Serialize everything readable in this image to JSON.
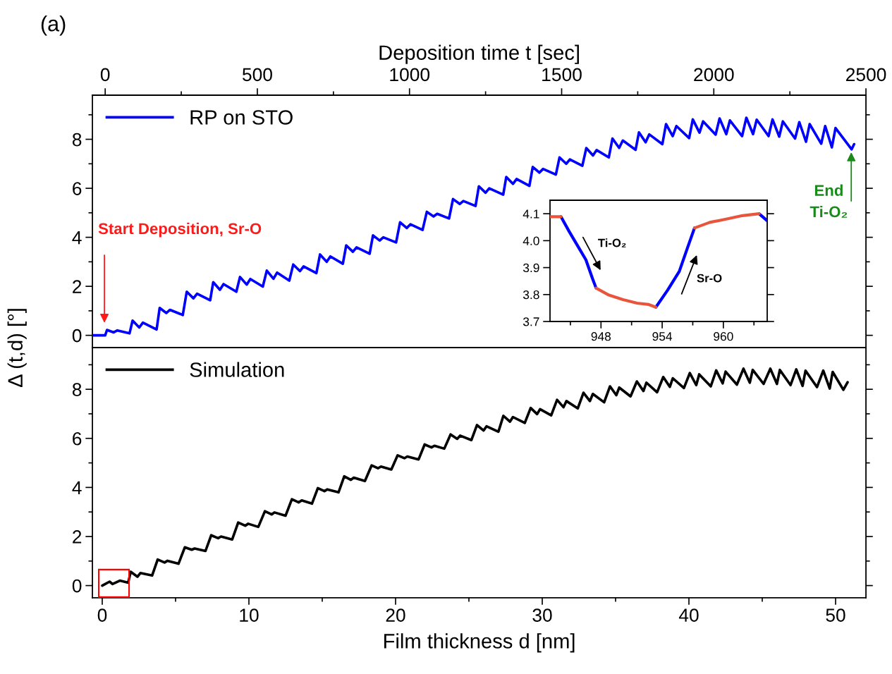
{
  "chart_data": [
    {
      "type": "line",
      "xlabel": "Deposition time t [sec]",
      "ylabel": "Δ (t,d) [°]",
      "xlim": [
        -42,
        2500
      ],
      "xticks": [
        0,
        {
          "value": 250,
          "label": null
        },
        500,
        {
          "value": 750,
          "label": null
        },
        1000,
        {
          "value": 1250,
          "label": null
        },
        1500,
        {
          "value": 1750,
          "label": null
        },
        2000,
        {
          "value": 2250,
          "label": null
        },
        2500
      ],
      "ylim": [
        -0.5,
        9.8
      ],
      "yticks": [
        0,
        {
          "value": 1,
          "label": null
        },
        2,
        {
          "value": 3,
          "label": null
        },
        4,
        {
          "value": 5,
          "label": null
        },
        6,
        {
          "value": 7,
          "label": null
        },
        8,
        {
          "value": 9,
          "label": null
        }
      ],
      "legend": "top left",
      "marker": "none",
      "line_style": "solid",
      "series": [
        {
          "name": "RP on STO",
          "color": "#0000ff",
          "x": [
            -40,
            0,
            6,
            28,
            40,
            80,
            90,
            112,
            124,
            169,
            179,
            201,
            213,
            255,
            268,
            290,
            302,
            345,
            355,
            377,
            389,
            431,
            443,
            465,
            477,
            518,
            531,
            553,
            565,
            605,
            618,
            640,
            652,
            694,
            706,
            728,
            740,
            781,
            792,
            814,
            826,
            869,
            880,
            902,
            914,
            956,
            969,
            991,
            1003,
            1043,
            1057,
            1079,
            1091,
            1130,
            1143,
            1165,
            1177,
            1217,
            1228,
            1250,
            1262,
            1308,
            1318,
            1340,
            1352,
            1394,
            1405,
            1427,
            1439,
            1481,
            1493,
            1515,
            1527,
            1568,
            1581,
            1603,
            1615,
            1655,
            1667,
            1689,
            1701,
            1743,
            1754,
            1776,
            1788,
            1831,
            1843,
            1865,
            1877,
            1919,
            1931,
            1953,
            1965,
            2006,
            2019,
            2041,
            2053,
            2093,
            2107,
            2129,
            2141,
            2180,
            2193,
            2215,
            2227,
            2267,
            2281,
            2303,
            2315,
            2353,
            2366,
            2388,
            2400,
            2453,
            2461
          ],
          "values": [
            0,
            0,
            0.22,
            0.12,
            0.2,
            0.08,
            0.6,
            0.32,
            0.52,
            0.24,
            1.12,
            0.91,
            1.04,
            0.83,
            1.78,
            1.51,
            1.7,
            1.43,
            2.17,
            1.86,
            2.09,
            1.78,
            2.38,
            2.07,
            2.3,
            1.99,
            2.64,
            2.31,
            2.56,
            2.23,
            2.89,
            2.62,
            2.81,
            2.54,
            3.3,
            3.0,
            3.22,
            2.92,
            3.67,
            3.41,
            3.59,
            3.33,
            4.08,
            3.87,
            4.0,
            3.79,
            4.61,
            4.38,
            4.53,
            4.3,
            5.04,
            4.85,
            4.96,
            4.77,
            5.56,
            5.36,
            5.48,
            5.28,
            6.08,
            5.82,
            6.0,
            5.74,
            6.46,
            6.18,
            6.38,
            6.1,
            6.87,
            6.64,
            6.79,
            6.56,
            7.26,
            7.0,
            7.18,
            6.92,
            7.64,
            7.34,
            7.56,
            7.26,
            8.03,
            7.65,
            7.95,
            7.57,
            8.28,
            7.88,
            8.2,
            7.8,
            8.62,
            8.13,
            8.54,
            8.05,
            8.81,
            8.27,
            8.73,
            8.19,
            8.85,
            8.21,
            8.77,
            8.13,
            8.88,
            8.21,
            8.8,
            8.13,
            8.81,
            8.11,
            8.73,
            8.03,
            8.7,
            7.9,
            8.62,
            7.82,
            8.54,
            7.67,
            8.46,
            7.59,
            7.8
          ]
        }
      ],
      "annotations": [
        "Start Deposition, Sr-O",
        "End\nTi-O₂",
        "(a)"
      ]
    },
    {
      "type": "line",
      "xlabel": "Film thickness d [nm]",
      "xlim": [
        -0.67,
        52.07
      ],
      "xticks": [
        0,
        {
          "value": 5,
          "label": null
        },
        10,
        {
          "value": 15,
          "label": null
        },
        20,
        {
          "value": 25,
          "label": null
        },
        30,
        {
          "value": 35,
          "label": null
        },
        40,
        {
          "value": 45,
          "label": null
        },
        50
      ],
      "ylim": [
        -0.5,
        9.7
      ],
      "yticks": [
        0,
        {
          "value": 1,
          "label": null
        },
        2,
        {
          "value": 3,
          "label": null
        },
        4,
        {
          "value": 5,
          "label": null
        },
        6,
        {
          "value": 7,
          "label": null
        },
        8,
        {
          "value": 9,
          "label": null
        }
      ],
      "legend": "top left",
      "marker": "none",
      "line_style": "solid",
      "series": [
        {
          "name": "Simulation",
          "color": "#000000",
          "x": [
            0,
            0.5,
            0.7,
            1.2,
            1.77,
            1.94,
            2.4,
            2.6,
            3.4,
            3.78,
            4.25,
            4.45,
            5.2,
            5.63,
            6.1,
            6.3,
            7.04,
            7.43,
            7.9,
            8.1,
            8.86,
            9.27,
            9.75,
            9.95,
            10.64,
            11.09,
            11.55,
            11.75,
            12.5,
            12.93,
            13.4,
            13.6,
            14.3,
            14.7,
            15.15,
            15.35,
            16.11,
            16.5,
            16.95,
            17.15,
            17.91,
            18.37,
            18.8,
            19.0,
            19.71,
            20.14,
            20.6,
            20.8,
            21.57,
            21.98,
            22.45,
            22.65,
            23.32,
            23.75,
            24.2,
            24.4,
            25.17,
            25.55,
            26.0,
            26.2,
            27.01,
            27.35,
            27.8,
            28.0,
            28.81,
            29.21,
            29.65,
            29.85,
            30.61,
            31.01,
            31.45,
            31.65,
            32.42,
            32.81,
            33.25,
            33.45,
            34.22,
            34.62,
            35.05,
            35.25,
            36.02,
            36.45,
            36.9,
            37.1,
            37.83,
            38.25,
            38.7,
            38.9,
            39.66,
            40.06,
            40.5,
            40.7,
            41.49,
            41.86,
            42.3,
            42.5,
            43.27,
            43.72,
            44.15,
            44.35,
            45.09,
            45.55,
            46.0,
            46.2,
            46.93,
            47.32,
            47.75,
            47.95,
            48.73,
            49.16,
            49.6,
            49.8,
            50.53,
            50.82
          ],
          "values": [
            0.0,
            0.16,
            0.06,
            0.2,
            0.12,
            0.56,
            0.36,
            0.51,
            0.41,
            1.06,
            0.94,
            1.01,
            0.89,
            1.56,
            1.46,
            1.51,
            1.41,
            2.05,
            1.93,
            2.0,
            1.88,
            2.57,
            2.44,
            2.52,
            2.39,
            3.03,
            2.9,
            2.98,
            2.85,
            3.52,
            3.39,
            3.47,
            3.34,
            3.97,
            3.85,
            3.92,
            3.8,
            4.45,
            4.31,
            4.4,
            4.26,
            4.9,
            4.78,
            4.85,
            4.73,
            5.31,
            5.19,
            5.26,
            5.14,
            5.75,
            5.63,
            5.7,
            5.58,
            6.16,
            5.98,
            6.11,
            5.93,
            6.54,
            6.32,
            6.49,
            6.27,
            6.92,
            6.68,
            6.87,
            6.63,
            7.24,
            6.99,
            7.19,
            6.94,
            7.57,
            7.27,
            7.52,
            7.22,
            7.86,
            7.52,
            7.81,
            7.47,
            8.12,
            7.76,
            8.07,
            7.71,
            8.32,
            7.93,
            8.27,
            7.88,
            8.5,
            8.1,
            8.45,
            8.05,
            8.66,
            8.17,
            8.61,
            8.12,
            8.77,
            8.24,
            8.72,
            8.19,
            8.84,
            8.27,
            8.79,
            8.22,
            8.84,
            8.22,
            8.79,
            8.17,
            8.81,
            8.14,
            8.76,
            8.09,
            8.76,
            8.03,
            8.71,
            7.98,
            8.29
          ]
        }
      ]
    },
    {
      "type": "line",
      "xlim": [
        943.0,
        964.3
      ],
      "xticks": [
        {
          "value": 945,
          "label": null
        },
        948,
        {
          "value": 951,
          "label": null
        },
        954,
        {
          "value": 957,
          "label": null
        },
        960,
        {
          "value": 963,
          "label": null
        }
      ],
      "ylim": [
        3.7,
        4.15
      ],
      "yticks": [
        3.7,
        3.8,
        3.9,
        {
          "value": 4.0,
          "label": "4.0"
        },
        4.1
      ],
      "marker": "none",
      "line_style": "solid",
      "series": [
        {
          "color": "#0000ff",
          "x": [
            944.07,
            944.88,
            945.83,
            946.52,
            947.17,
            947.52,
            950,
            953.38,
            954.53,
            955.68,
            956.48,
            957.17,
            960,
            963.5,
            964.3
          ],
          "values": [
            4.089,
            4.034,
            3.973,
            3.929,
            3.859,
            3.824,
            null,
            3.753,
            3.816,
            3.886,
            3.973,
            4.047,
            null,
            4.1,
            4.074
          ]
        },
        {
          "color": "#e8553c",
          "x": [
            943.0,
            944.07,
            946,
            947.52,
            948.78,
            950.16,
            951.54,
            952.69,
            953.38,
            955,
            957.17,
            958.67,
            960.28,
            961.88,
            963.5
          ],
          "values": [
            4.089,
            4.089,
            null,
            3.824,
            3.798,
            3.781,
            3.768,
            3.763,
            3.753,
            null,
            4.047,
            4.068,
            4.08,
            4.093,
            4.1
          ]
        }
      ],
      "annotations": [
        "Ti-O₂",
        "Sr-O"
      ]
    }
  ]
}
